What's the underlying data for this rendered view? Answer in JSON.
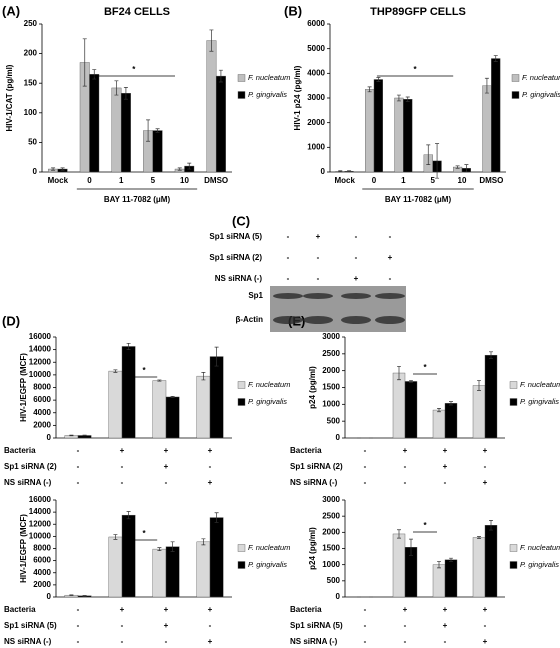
{
  "chart_data": [
    {
      "type": "bar",
      "panel_label": "(A)",
      "title": "BF24 CELLS",
      "y_label": "HIV-1/CAT (pg/ml)",
      "categories": [
        "Mock",
        "0",
        "1",
        "5",
        "10",
        "DMSO"
      ],
      "x_group_label": "BAY 11-7082 (μM)",
      "annotation": "*",
      "ylim": [
        0,
        250
      ],
      "yticks": [
        0,
        50,
        100,
        150,
        200,
        250
      ],
      "series": [
        {
          "name": "F. nucleatum",
          "color": "#bfbfbf",
          "values": [
            5,
            185,
            142,
            70,
            5,
            222
          ],
          "errors": [
            2,
            40,
            12,
            18,
            2,
            18
          ]
        },
        {
          "name": "P. gingivalis",
          "color": "#000000",
          "values": [
            5,
            165,
            133,
            70,
            10,
            162
          ],
          "errors": [
            2,
            8,
            10,
            3,
            5,
            10
          ]
        }
      ]
    },
    {
      "type": "bar",
      "panel_label": "(B)",
      "title": "THP89GFP CELLS",
      "y_label": "HIV-1  p24  (pg/ml)",
      "categories": [
        "Mock",
        "0",
        "1",
        "5",
        "10",
        "DMSO"
      ],
      "x_group_label": "BAY 11-7082 (μM)",
      "annotation": "*",
      "ylim": [
        0,
        6000
      ],
      "yticks": [
        0,
        1000,
        2000,
        3000,
        4000,
        5000,
        6000
      ],
      "series": [
        {
          "name": "F. nucleatum",
          "color": "#bfbfbf",
          "values": [
            30,
            3350,
            3000,
            700,
            200,
            3500
          ],
          "errors": [
            20,
            100,
            120,
            400,
            50,
            300
          ]
        },
        {
          "name": "P. gingivalis",
          "color": "#000000",
          "values": [
            30,
            3750,
            2950,
            450,
            150,
            4600
          ],
          "errors": [
            20,
            80,
            90,
            700,
            150,
            120
          ]
        }
      ]
    },
    {
      "type": "bar",
      "panel_label": "(D)",
      "y_label": "HIV-1/EGFP (MCF)",
      "annotation": "*",
      "ylim": [
        0,
        16000
      ],
      "yticks": [
        0,
        2000,
        4000,
        6000,
        8000,
        10000,
        12000,
        14000,
        16000
      ],
      "conditions": [
        {
          "name": "Bacteria",
          "signs": [
            "-",
            "+",
            "+",
            "+"
          ]
        },
        {
          "name": "Sp1 siRNA (2)",
          "signs": [
            "-",
            "-",
            "+",
            "-"
          ]
        },
        {
          "name": "NS siRNA (-)",
          "signs": [
            "-",
            "-",
            "-",
            "+"
          ]
        }
      ],
      "series": [
        {
          "name": "F. nucleatum",
          "color": "#d9d9d9",
          "values": [
            400,
            10600,
            9100,
            9800
          ],
          "errors": [
            50,
            200,
            100,
            600
          ]
        },
        {
          "name": "P. gingivalis",
          "color": "#000000",
          "values": [
            400,
            14500,
            6500,
            12900
          ],
          "errors": [
            50,
            500,
            100,
            1500
          ]
        }
      ]
    },
    {
      "type": "bar",
      "y_label": "HIV-1/EGFP (MCF)",
      "annotation": "*",
      "ylim": [
        0,
        16000
      ],
      "yticks": [
        0,
        2000,
        4000,
        6000,
        8000,
        10000,
        12000,
        14000,
        16000
      ],
      "conditions": [
        {
          "name": "Bacteria",
          "signs": [
            "-",
            "+",
            "+",
            "+"
          ]
        },
        {
          "name": "Sp1 siRNA (5)",
          "signs": [
            "-",
            "-",
            "+",
            "-"
          ]
        },
        {
          "name": "NS siRNA (-)",
          "signs": [
            "-",
            "-",
            "-",
            "+"
          ]
        }
      ],
      "series": [
        {
          "name": "F. nucleatum",
          "color": "#d9d9d9",
          "values": [
            300,
            9900,
            7900,
            9100
          ],
          "errors": [
            50,
            400,
            250,
            500
          ]
        },
        {
          "name": "P. gingivalis",
          "color": "#000000",
          "values": [
            200,
            13500,
            8300,
            13100
          ],
          "errors": [
            50,
            600,
            800,
            800
          ]
        }
      ]
    },
    {
      "type": "bar",
      "panel_label": "(E)",
      "y_label": "p24 (pg/ml)",
      "annotation": "*",
      "ylim": [
        0,
        3000
      ],
      "yticks": [
        0,
        500,
        1000,
        1500,
        2000,
        2500,
        3000
      ],
      "conditions": [
        {
          "name": "Bacteria",
          "signs": [
            "-",
            "+",
            "+",
            "+"
          ]
        },
        {
          "name": "Sp1 siRNA (2)",
          "signs": [
            "-",
            "-",
            "+",
            "-"
          ]
        },
        {
          "name": "NS siRNA (-)",
          "signs": [
            "-",
            "-",
            "-",
            "+"
          ]
        }
      ],
      "series": [
        {
          "name": "F. nucleatum",
          "color": "#d9d9d9",
          "values": [
            0,
            1930,
            830,
            1560
          ],
          "errors": [
            0,
            200,
            50,
            150
          ]
        },
        {
          "name": "P. gingivalis",
          "color": "#000000",
          "values": [
            0,
            1680,
            1030,
            2460
          ],
          "errors": [
            0,
            30,
            50,
            100
          ]
        }
      ]
    },
    {
      "type": "bar",
      "y_label": "p24 (pg/ml)",
      "annotation": "*",
      "ylim": [
        0,
        3000
      ],
      "yticks": [
        0,
        500,
        1000,
        1500,
        2000,
        2500,
        3000
      ],
      "conditions": [
        {
          "name": "Bacteria",
          "signs": [
            "-",
            "+",
            "+",
            "+"
          ]
        },
        {
          "name": "Sp1 siRNA (5)",
          "signs": [
            "-",
            "-",
            "+",
            "-"
          ]
        },
        {
          "name": "NS siRNA (-)",
          "signs": [
            "-",
            "-",
            "-",
            "+"
          ]
        }
      ],
      "series": [
        {
          "name": "F. nucleatum",
          "color": "#d9d9d9",
          "values": [
            0,
            1950,
            1000,
            1840
          ],
          "errors": [
            0,
            130,
            100,
            30
          ]
        },
        {
          "name": "P. gingivalis",
          "color": "#000000",
          "values": [
            0,
            1540,
            1150,
            2220
          ],
          "errors": [
            0,
            250,
            50,
            150
          ]
        }
      ]
    }
  ],
  "blot": {
    "panel_label": "(C)",
    "rows": [
      {
        "name": "Sp1 siRNA (5)",
        "signs": [
          "-",
          "+",
          "-",
          "-"
        ]
      },
      {
        "name": "Sp1 siRNA (2)",
        "signs": [
          "-",
          "-",
          "-",
          "+"
        ]
      },
      {
        "name": "NS siRNA (-)",
        "signs": [
          "-",
          "-",
          "+",
          "-"
        ]
      }
    ],
    "bands": [
      "Sp1",
      "β-Actin"
    ]
  }
}
